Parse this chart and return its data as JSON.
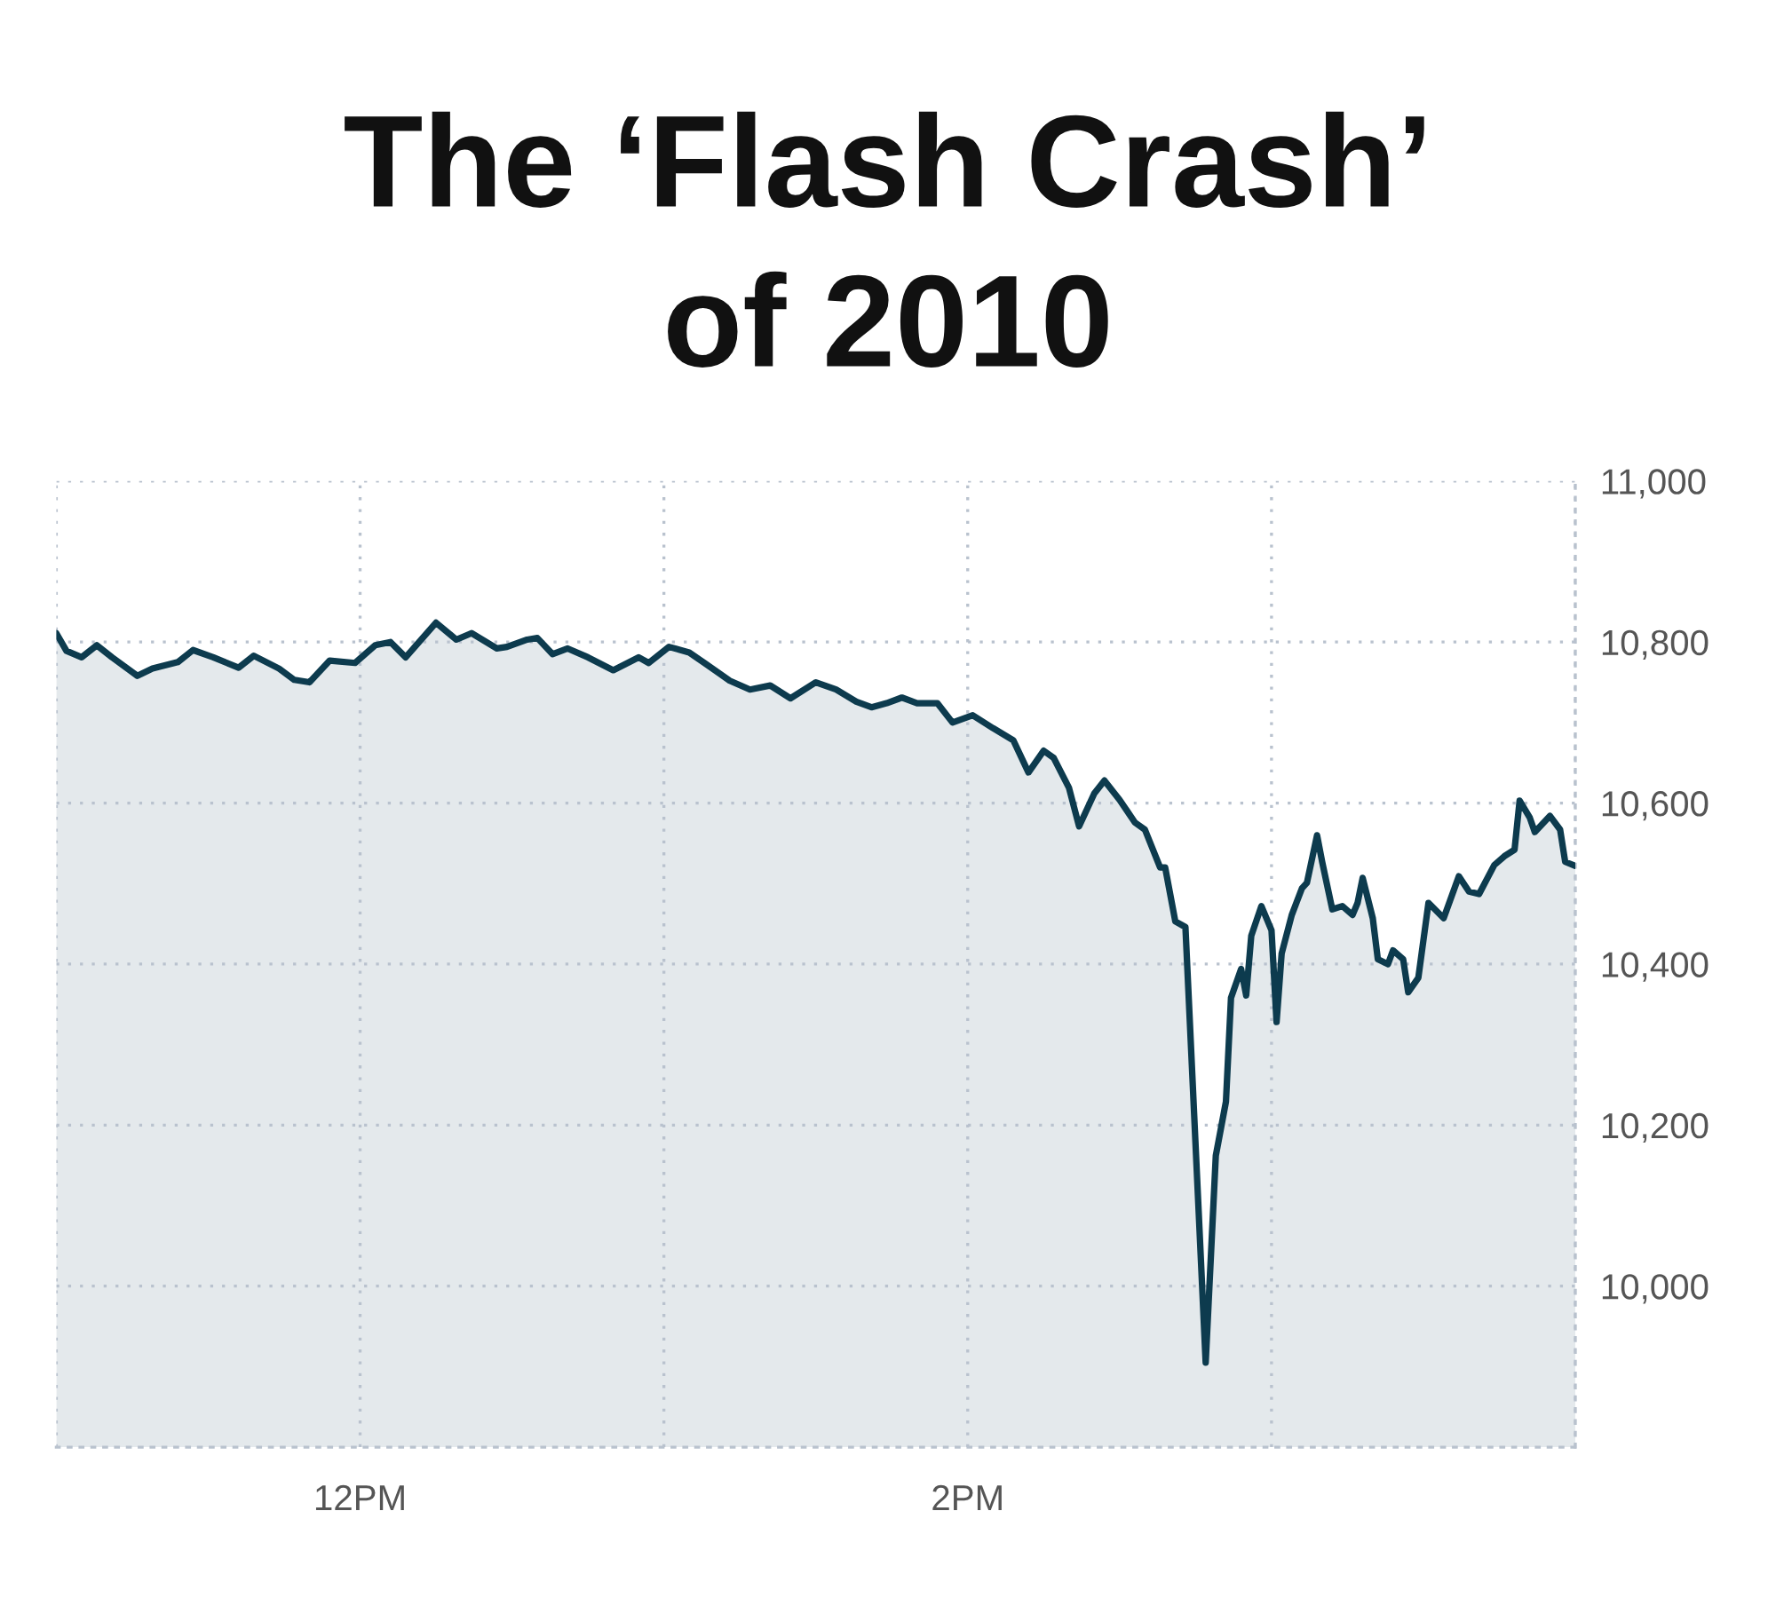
{
  "chart_data": {
    "type": "area",
    "title": "The ‘Flash Crash’\nof 2010",
    "xlim": [
      "2010-05-06T11:00",
      "2010-05-06T16:00"
    ],
    "xticks": [
      {
        "value": "2010-05-06T11:00",
        "label": null
      },
      {
        "value": "2010-05-06T12:00",
        "label": "12PM"
      },
      {
        "value": "2010-05-06T13:00",
        "label": null
      },
      {
        "value": "2010-05-06T14:00",
        "label": "2PM"
      },
      {
        "value": "2010-05-06T15:00",
        "label": null
      },
      {
        "value": "2010-05-06T16:00",
        "label": null
      }
    ],
    "ylim": [
      9800,
      11000
    ],
    "yticks": [
      {
        "value": 10000,
        "label": "10,000"
      },
      {
        "value": 10200,
        "label": "10,200"
      },
      {
        "value": 10400,
        "label": "10,400"
      },
      {
        "value": 10600,
        "label": "10,600"
      },
      {
        "value": 10800,
        "label": "10,800"
      },
      {
        "value": 11000,
        "label": "11,000"
      }
    ],
    "grid": true,
    "line_style": "solid",
    "series": [
      {
        "color": "#0d3b4e",
        "x": [
          "2010-05-06T11:00",
          "2010-05-06T11:02",
          "2010-05-06T11:05",
          "2010-05-06T11:08",
          "2010-05-06T11:11",
          "2010-05-06T11:16",
          "2010-05-06T11:19",
          "2010-05-06T11:24",
          "2010-05-06T11:27",
          "2010-05-06T11:31",
          "2010-05-06T11:36",
          "2010-05-06T11:39",
          "2010-05-06T11:44",
          "2010-05-06T11:47",
          "2010-05-06T11:50",
          "2010-05-06T11:54",
          "2010-05-06T11:59",
          "2010-05-06T12:03",
          "2010-05-06T12:06",
          "2010-05-06T12:09",
          "2010-05-06T12:15",
          "2010-05-06T12:19",
          "2010-05-06T12:22",
          "2010-05-06T12:27",
          "2010-05-06T12:29",
          "2010-05-06T12:33",
          "2010-05-06T12:35",
          "2010-05-06T12:38",
          "2010-05-06T12:41",
          "2010-05-06T12:45",
          "2010-05-06T12:50",
          "2010-05-06T12:55",
          "2010-05-06T12:57",
          "2010-05-06T13:01",
          "2010-05-06T13:05",
          "2010-05-06T13:08",
          "2010-05-06T13:13",
          "2010-05-06T13:17",
          "2010-05-06T13:21",
          "2010-05-06T13:25",
          "2010-05-06T13:30",
          "2010-05-06T13:34",
          "2010-05-06T13:38",
          "2010-05-06T13:41",
          "2010-05-06T13:44",
          "2010-05-06T13:47",
          "2010-05-06T13:50",
          "2010-05-06T13:54",
          "2010-05-06T13:57",
          "2010-05-06T14:01",
          "2010-05-06T14:05",
          "2010-05-06T14:09",
          "2010-05-06T14:12",
          "2010-05-06T14:15",
          "2010-05-06T14:17",
          "2010-05-06T14:20",
          "2010-05-06T14:22",
          "2010-05-06T14:25",
          "2010-05-06T14:27",
          "2010-05-06T14:30",
          "2010-05-06T14:33",
          "2010-05-06T14:35",
          "2010-05-06T14:38",
          "2010-05-06T14:39",
          "2010-05-06T14:41",
          "2010-05-06T14:43",
          "2010-05-06T14:47",
          "2010-05-06T14:49",
          "2010-05-06T14:51",
          "2010-05-06T14:52",
          "2010-05-06T14:54",
          "2010-05-06T14:55",
          "2010-05-06T14:56",
          "2010-05-06T14:58",
          "2010-05-06T15:00",
          "2010-05-06T15:01",
          "2010-05-06T15:02",
          "2010-05-06T15:04",
          "2010-05-06T15:06",
          "2010-05-06T15:07",
          "2010-05-06T15:09",
          "2010-05-06T15:10",
          "2010-05-06T15:12",
          "2010-05-06T15:14",
          "2010-05-06T15:16",
          "2010-05-06T15:17",
          "2010-05-06T15:18",
          "2010-05-06T15:20",
          "2010-05-06T15:21",
          "2010-05-06T15:23",
          "2010-05-06T15:24",
          "2010-05-06T15:26",
          "2010-05-06T15:27",
          "2010-05-06T15:29",
          "2010-05-06T15:31",
          "2010-05-06T15:34",
          "2010-05-06T15:37",
          "2010-05-06T15:39",
          "2010-05-06T15:41",
          "2010-05-06T15:44",
          "2010-05-06T15:46",
          "2010-05-06T15:48",
          "2010-05-06T15:49",
          "2010-05-06T15:51",
          "2010-05-06T15:52",
          "2010-05-06T15:55",
          "2010-05-06T15:57",
          "2010-05-06T15:58",
          "2010-05-06T16:00"
        ],
        "values": [
          10811,
          10789,
          10781,
          10796,
          10781,
          10758,
          10767,
          10775,
          10790,
          10781,
          10768,
          10783,
          10767,
          10753,
          10750,
          10777,
          10774,
          10796,
          10800,
          10781,
          10824,
          10803,
          10811,
          10792,
          10794,
          10803,
          10805,
          10785,
          10792,
          10781,
          10765,
          10781,
          10774,
          10794,
          10787,
          10774,
          10752,
          10741,
          10746,
          10730,
          10750,
          10741,
          10726,
          10719,
          10724,
          10731,
          10724,
          10724,
          10700,
          10709,
          10693,
          10678,
          10638,
          10665,
          10656,
          10619,
          10571,
          10612,
          10628,
          10604,
          10576,
          10567,
          10520,
          10520,
          10453,
          10446,
          9905,
          10162,
          10229,
          10358,
          10394,
          10361,
          10435,
          10472,
          10442,
          10328,
          10413,
          10461,
          10494,
          10501,
          10560,
          10527,
          10468,
          10472,
          10461,
          10476,
          10507,
          10457,
          10406,
          10400,
          10417,
          10406,
          10365,
          10383,
          10476,
          10457,
          10509,
          10490,
          10487,
          10523,
          10534,
          10542,
          10603,
          10582,
          10564,
          10584,
          10567,
          10527,
          10522
        ]
      }
    ]
  }
}
